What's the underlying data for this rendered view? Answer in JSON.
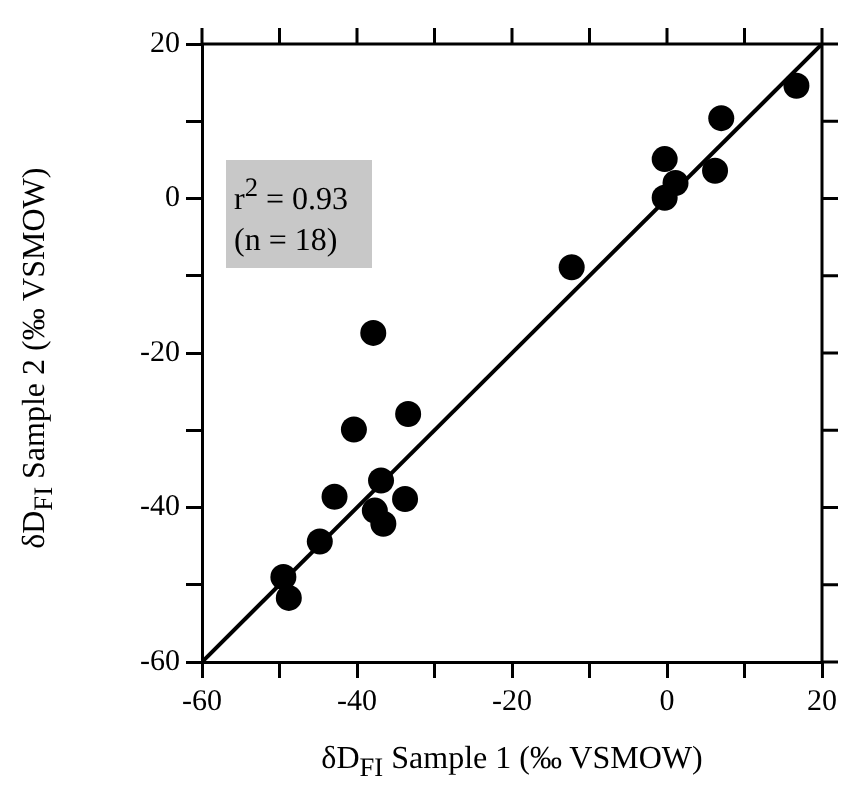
{
  "chart_data": {
    "type": "scatter",
    "xlabel": "δD$_{FI}$ Sample 1 (‰ VSMOW)",
    "ylabel": "δD$_{FI}$ Sample 2 (‰ VSMOW)",
    "annotations": [
      "r$^{2}$ = 0.93",
      "(n = 18)"
    ],
    "xlim": [
      -60,
      20
    ],
    "ylim": [
      -60,
      20
    ],
    "xticks": [
      -60,
      {
        "value": -50,
        "label": null
      },
      -40,
      {
        "value": -30,
        "label": null
      },
      -20,
      {
        "value": -10,
        "label": null
      },
      0,
      {
        "value": 10,
        "label": null
      },
      20
    ],
    "yticks": [
      -60,
      {
        "value": -50,
        "label": null
      },
      -40,
      {
        "value": -30,
        "label": null
      },
      -20,
      {
        "value": -10,
        "label": null
      },
      0,
      {
        "value": 10,
        "label": null
      },
      20
    ],
    "marker": "circle",
    "series": [
      {
        "type": "scatter",
        "color": "#000000",
        "x": [
          16.7,
          7.0,
          6.2,
          -0.3,
          1.1,
          -0.3,
          -12.3,
          -37.9,
          -33.4,
          -40.4,
          -36.9,
          -42.9,
          -33.8,
          -37.7,
          -36.6,
          -44.8,
          -49.5,
          -48.8
        ],
        "values": [
          14.6,
          10.4,
          3.6,
          5.1,
          2.0,
          0.1,
          -8.9,
          -17.4,
          -27.9,
          -29.9,
          -36.5,
          -38.6,
          -38.9,
          -40.4,
          -42.1,
          -44.4,
          -49.0,
          -51.7
        ]
      },
      {
        "type": "line",
        "color": "#000000",
        "marker": "none",
        "line_style": "solid",
        "x": [
          -60,
          20
        ],
        "values": [
          -60,
          20
        ]
      }
    ]
  }
}
